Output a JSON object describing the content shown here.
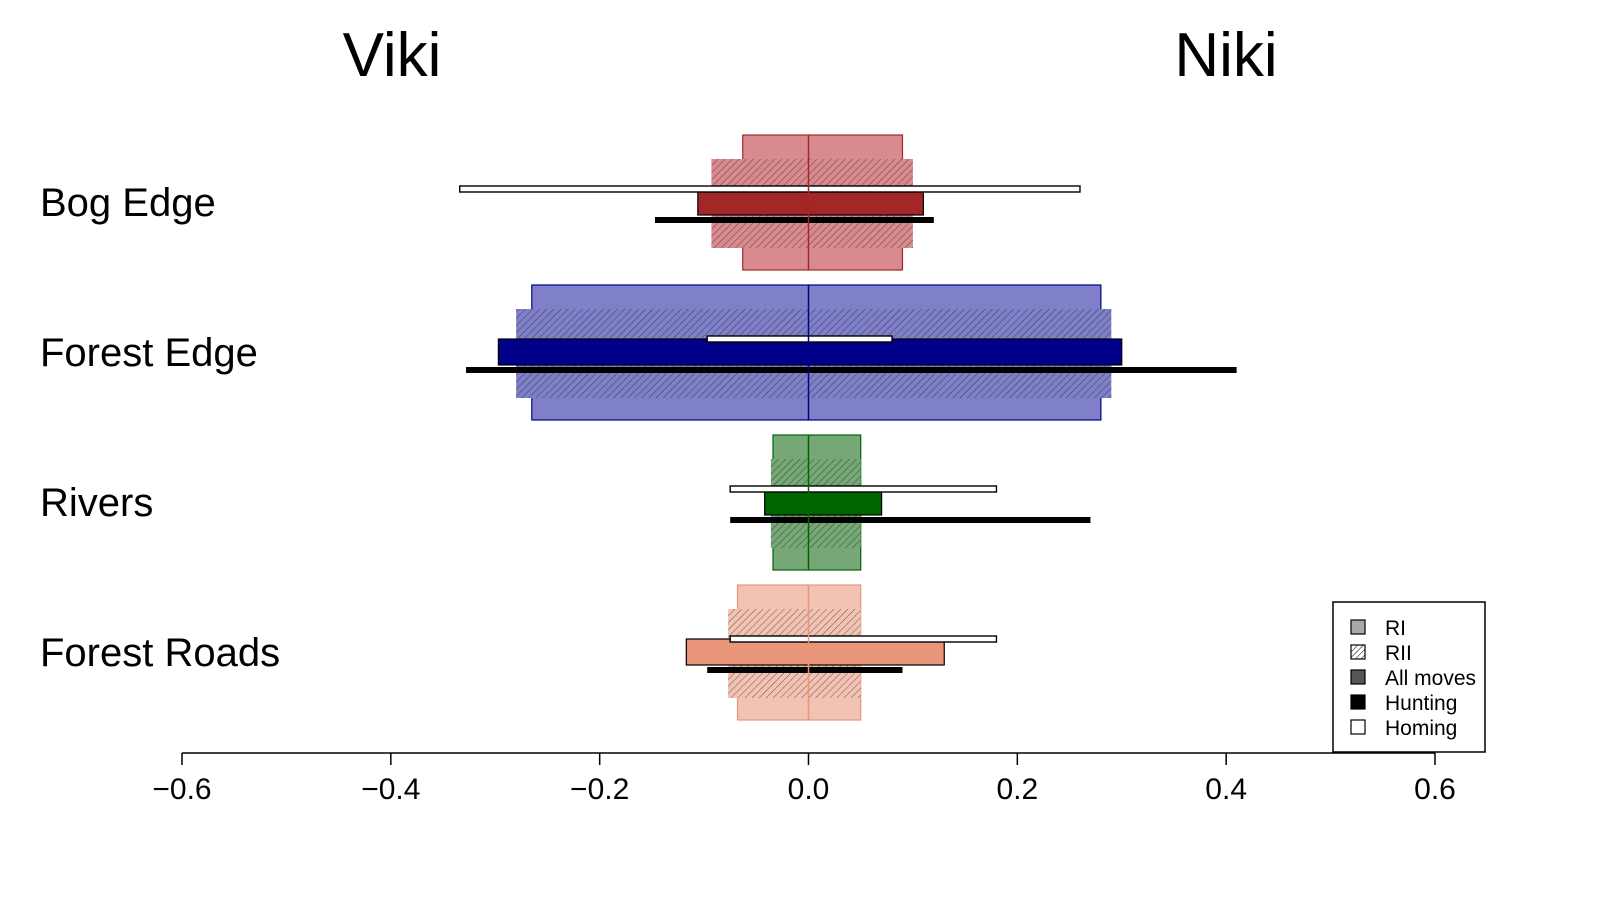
{
  "left_title": "Viki",
  "right_title": "Niki",
  "chart_data": {
    "type": "bar",
    "orientation": "horizontal",
    "xlim": [
      -0.6,
      0.6
    ],
    "xticks": [
      -0.6,
      -0.4,
      -0.2,
      0.0,
      0.2,
      0.4,
      0.6
    ],
    "xtick_labels": [
      "−0.6",
      "−0.4",
      "−0.2",
      "0.0",
      "0.2",
      "0.4",
      "0.6"
    ],
    "categories": [
      "Bog Edge",
      "Forest Edge",
      "Rivers",
      "Forest Roads"
    ],
    "category_colors": {
      "light": [
        "#d98a8f",
        "#7f80c8",
        "#76a877",
        "#f2c2b3"
      ],
      "dark": [
        "#a32727",
        "#00008b",
        "#006400",
        "#e8957a"
      ]
    },
    "series": [
      {
        "name": "RI",
        "ranges": [
          [
            -0.063,
            0.09
          ],
          [
            -0.265,
            0.28
          ],
          [
            -0.034,
            0.05
          ],
          [
            -0.068,
            0.05
          ]
        ]
      },
      {
        "name": "RII",
        "ranges": [
          [
            -0.093,
            0.1
          ],
          [
            -0.28,
            0.29
          ],
          [
            -0.036,
            0.05
          ],
          [
            -0.077,
            0.05
          ]
        ]
      },
      {
        "name": "All moves",
        "ranges": [
          [
            -0.106,
            0.11
          ],
          [
            -0.297,
            0.3
          ],
          [
            -0.042,
            0.07
          ],
          [
            -0.117,
            0.13
          ]
        ]
      },
      {
        "name": "Hunting",
        "ranges": [
          [
            -0.147,
            0.12
          ],
          [
            -0.328,
            0.41
          ],
          [
            -0.075,
            0.27
          ],
          [
            -0.097,
            0.09
          ]
        ]
      },
      {
        "name": "Homing",
        "ranges": [
          [
            -0.334,
            0.26
          ],
          [
            -0.097,
            0.08
          ],
          [
            -0.075,
            0.18
          ],
          [
            -0.075,
            0.18
          ]
        ]
      }
    ],
    "legend": {
      "position": "bottom-right",
      "entries": [
        "RI",
        "RII",
        "All moves",
        "Hunting",
        "Homing"
      ]
    },
    "grid": false
  }
}
